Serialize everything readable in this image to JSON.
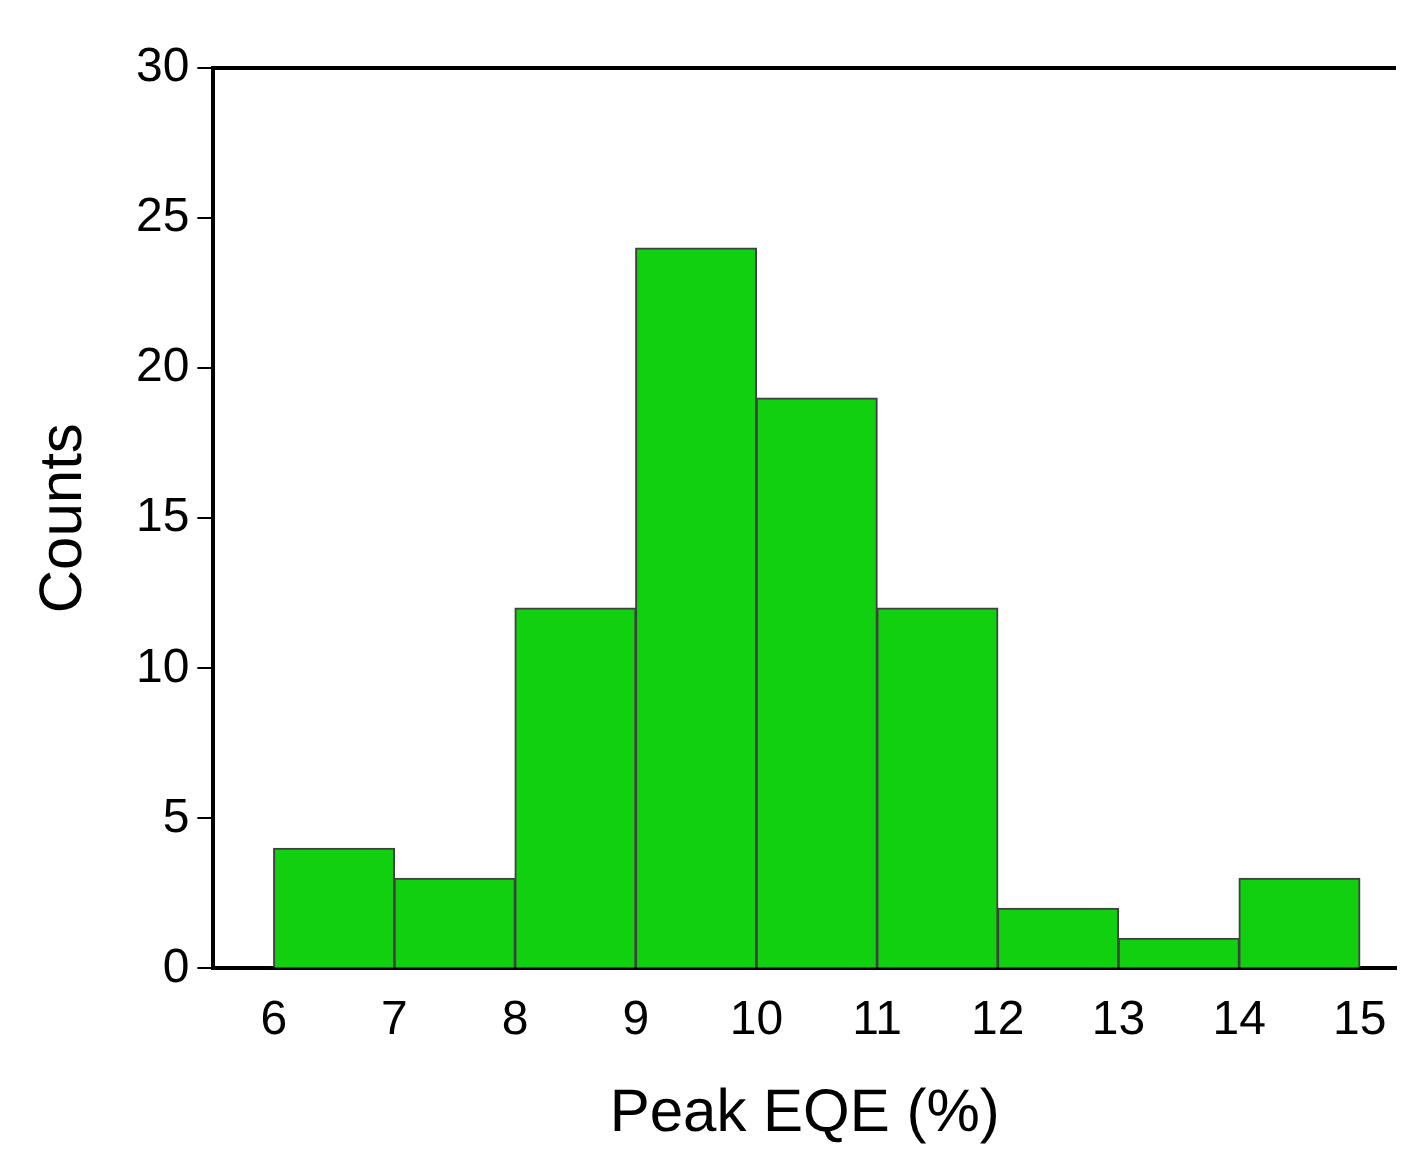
{
  "chart_data": {
    "type": "histogram",
    "xlabel": "Peak EQE (%)",
    "ylabel": "Counts",
    "bins": [
      6,
      7,
      8,
      9,
      10,
      11,
      12,
      13,
      14,
      15
    ],
    "values": [
      4,
      3,
      12,
      24,
      19,
      12,
      2,
      1,
      3
    ],
    "color": "#10d010",
    "xlim": [
      5.5,
      15.3
    ],
    "xticks": [
      6,
      7,
      8,
      9,
      10,
      11,
      12,
      13,
      14,
      15
    ],
    "ylim": [
      0,
      30
    ],
    "yticks": [
      0,
      5,
      10,
      15,
      20,
      25,
      30
    ],
    "grid": false,
    "legend": false
  }
}
